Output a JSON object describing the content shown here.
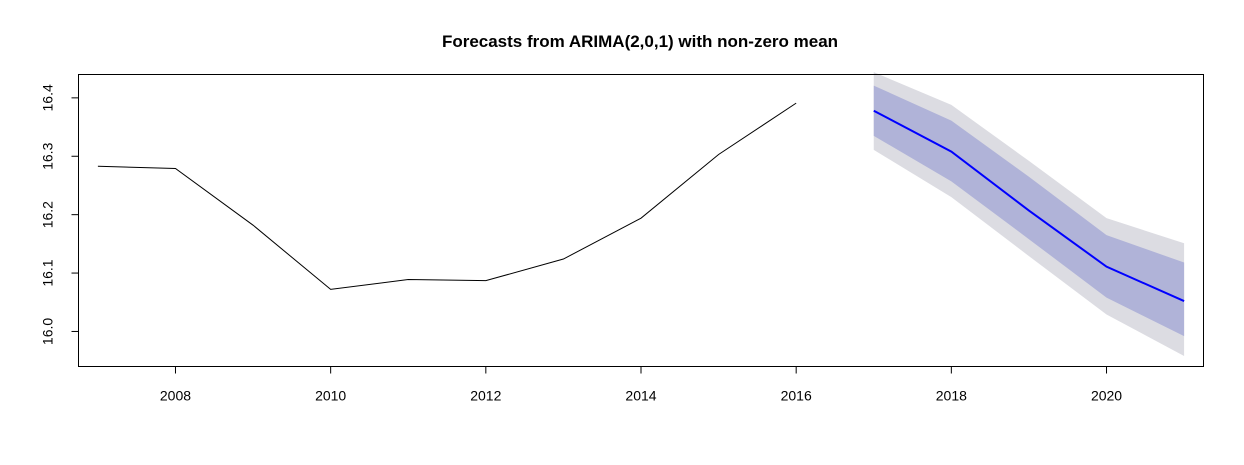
{
  "chart_data": {
    "type": "line",
    "title": "Forecasts from ARIMA(2,0,1) with non-zero mean",
    "xlabel": "",
    "ylabel": "",
    "xlim": [
      2006.75,
      2021.25
    ],
    "ylim": [
      15.94,
      16.44
    ],
    "x_ticks": [
      2008,
      2010,
      2012,
      2014,
      2016,
      2018,
      2020
    ],
    "x_tick_labels": [
      "2008",
      "2010",
      "2012",
      "2014",
      "2016",
      "2018",
      "2020"
    ],
    "y_ticks": [
      16.0,
      16.1,
      16.2,
      16.3,
      16.4
    ],
    "y_tick_labels": [
      "16.0",
      "16.1",
      "16.2",
      "16.3",
      "16.4"
    ],
    "grid": false,
    "colors": {
      "history": "#000000",
      "forecast": "#0000ff",
      "band_80": "#b0b3d8",
      "band_95": "#dcdce2"
    },
    "series": [
      {
        "role": "history",
        "x": [
          2007,
          2008,
          2009,
          2010,
          2011,
          2012,
          2013,
          2014,
          2015,
          2016
        ],
        "values": [
          16.283,
          16.279,
          16.182,
          16.072,
          16.089,
          16.087,
          16.124,
          16.194,
          16.303,
          16.391
        ]
      },
      {
        "role": "forecast",
        "x": [
          2017,
          2018,
          2019,
          2020,
          2021
        ],
        "values": [
          16.378,
          16.308,
          16.207,
          16.111,
          16.052
        ],
        "lo80": [
          16.335,
          16.257,
          16.158,
          16.058,
          15.992
        ],
        "hi80": [
          16.421,
          16.361,
          16.265,
          16.165,
          16.118
        ],
        "lo95": [
          16.311,
          16.23,
          16.129,
          16.029,
          15.958
        ],
        "hi95": [
          16.444,
          16.388,
          16.292,
          16.194,
          16.151
        ]
      }
    ]
  }
}
